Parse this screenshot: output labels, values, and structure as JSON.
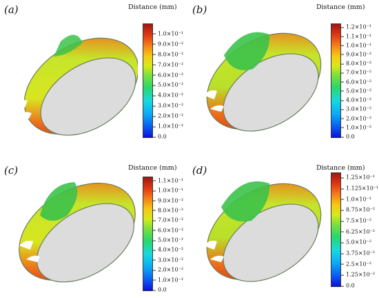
{
  "panels": [
    {
      "label": "(a)",
      "colorbar_title": "Distance (mm)",
      "ticks": [
        "0.0",
        "1.0×10⁻²",
        "2.0×10⁻²",
        "3.0×10⁻²",
        "4.0×10⁻²",
        "5.0×10⁻²",
        "6.0×10⁻²",
        "7.0×10⁻²",
        "8.0×10⁻²",
        "9.0×10⁻²",
        "1.0×10⁻¹"
      ],
      "tick_fractions": [
        0,
        0.0909,
        0.1818,
        0.2727,
        0.3636,
        0.4545,
        0.5454,
        0.6363,
        0.7272,
        0.8181,
        0.909
      ]
    },
    {
      "label": "(b)",
      "colorbar_title": "Distance (mm)",
      "ticks": [
        "0.0",
        "1.0×10⁻²",
        "2.0×10⁻²",
        "3.0×10⁻²",
        "4.0×10⁻²",
        "5.0×10⁻²",
        "6.0×10⁻²",
        "7.0×10⁻²",
        "8.0×10⁻²",
        "9.0×10⁻²",
        "1.0×10⁻¹",
        "1.1×10⁻¹",
        "1.2×10⁻¹"
      ],
      "tick_fractions": [
        0,
        0.0806,
        0.1612,
        0.2419,
        0.3225,
        0.4032,
        0.4838,
        0.5645,
        0.6451,
        0.7258,
        0.8064,
        0.8871,
        0.9677
      ]
    },
    {
      "label": "(c)",
      "colorbar_title": "Distance (mm)",
      "ticks": [
        "0.0",
        "1.0×10⁻²",
        "2.0×10⁻²",
        "3.0×10⁻²",
        "4.0×10⁻²",
        "5.0×10⁻²",
        "6.0×10⁻²",
        "7.0×10⁻²",
        "8.0×10⁻²",
        "9.0×10⁻²",
        "1.0×10⁻¹",
        "1.1×10⁻¹"
      ],
      "tick_fractions": [
        0,
        0.0877,
        0.1754,
        0.2631,
        0.3508,
        0.4385,
        0.5262,
        0.6139,
        0.7016,
        0.7893,
        0.877,
        0.9647
      ]
    },
    {
      "label": "(d)",
      "colorbar_title": "Distance (mm)",
      "ticks": [
        "0.0",
        "1.25×10⁻²",
        "2.5×10⁻²",
        "3.75×10⁻²",
        "5.0×10⁻²",
        "6.25×10⁻²",
        "7.5×10⁻²",
        "8.75×10⁻²",
        "1.0×10⁻¹",
        "1.125×10⁻¹",
        "1.25×10⁻¹"
      ],
      "tick_fractions": [
        0,
        0.0955,
        0.191,
        0.2865,
        0.382,
        0.4775,
        0.573,
        0.6685,
        0.764,
        0.8595,
        0.955
      ]
    }
  ],
  "colors": {
    "scale": [
      "#0a12d8",
      "#0aa8f6",
      "#18d8e0",
      "#2bd86a",
      "#d6ea1a",
      "#f6c814",
      "#f3801a",
      "#e13a16",
      "#a3160f"
    ],
    "ring_interior": "#dcdcdc",
    "ring_edge": "#6a7d5c"
  }
}
